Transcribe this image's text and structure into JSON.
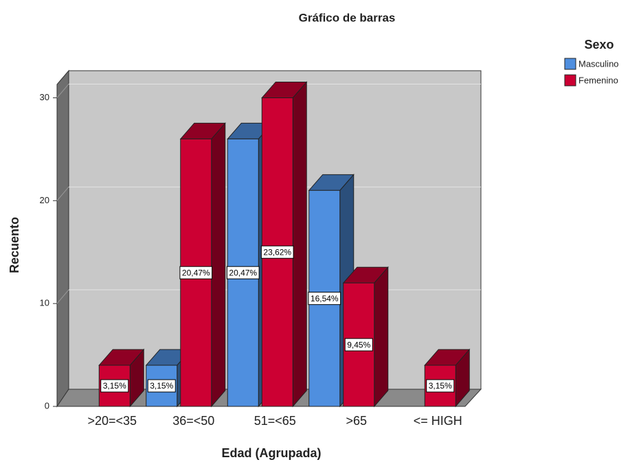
{
  "chart_data": {
    "type": "bar3d",
    "title": "Gráfico de barras",
    "x_label": "Edad (Agrupada)",
    "y_label": "Recuento",
    "legend_title": "Sexo",
    "legend_position": "upper right",
    "categories": [
      ">20=<35",
      "36=<50",
      "51=<65",
      ">65",
      "<= HIGH"
    ],
    "series": [
      {
        "name": "Masculino",
        "color": "#4f8fdf",
        "values": [
          null,
          4,
          26,
          21,
          null
        ],
        "value_labels": [
          null,
          "3,15%",
          "20,47%",
          "16,54%",
          null
        ]
      },
      {
        "name": "Femenino",
        "color": "#cc0033",
        "values": [
          4,
          26,
          30,
          12,
          4
        ],
        "value_labels": [
          "3,15%",
          "20,47%",
          "23,62%",
          "9,45%",
          "3,15%"
        ]
      }
    ],
    "ylim": [
      0,
      31.3
    ],
    "yticks": [
      0,
      10,
      20,
      30
    ],
    "grid": true
  }
}
